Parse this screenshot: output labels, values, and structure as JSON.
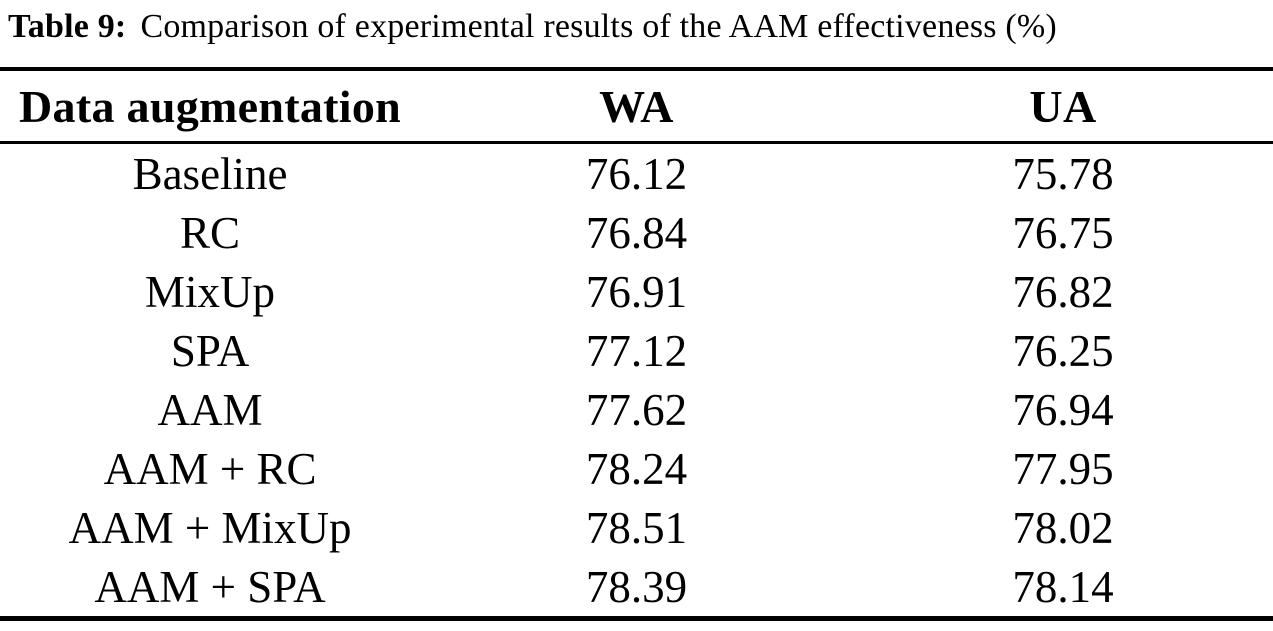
{
  "caption": {
    "label": "Table 9:",
    "text": "Comparison of experimental results of the AAM effectiveness (%)"
  },
  "table": {
    "columns": {
      "method": "Data augmentation",
      "wa": "WA",
      "ua": "UA"
    },
    "rows": [
      {
        "method": "Baseline",
        "wa": "76.12",
        "ua": "75.78"
      },
      {
        "method": "RC",
        "wa": "76.84",
        "ua": "76.75"
      },
      {
        "method": "MixUp",
        "wa": "76.91",
        "ua": "76.82"
      },
      {
        "method": "SPA",
        "wa": "77.12",
        "ua": "76.25"
      },
      {
        "method": "AAM",
        "wa": "77.62",
        "ua": "76.94"
      },
      {
        "method": "AAM + RC",
        "wa": "78.24",
        "ua": "77.95"
      },
      {
        "method": "AAM + MixUp",
        "wa": "78.51",
        "ua": "78.02"
      },
      {
        "method": "AAM + SPA",
        "wa": "78.39",
        "ua": "78.14"
      }
    ],
    "colors": {
      "text": "#000000",
      "background": "#ffffff",
      "rule": "#000000"
    }
  }
}
